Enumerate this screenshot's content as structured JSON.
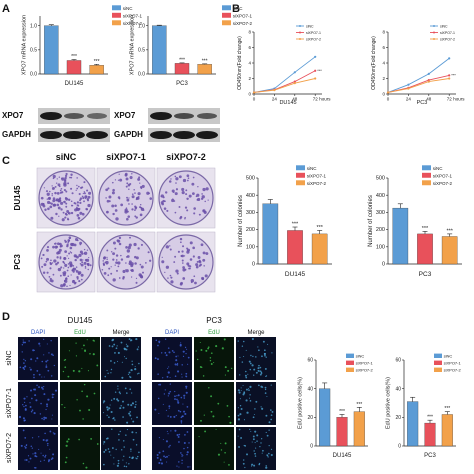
{
  "panels": {
    "A": {
      "letter": "A"
    },
    "B": {
      "letter": "B"
    },
    "C": {
      "letter": "C"
    },
    "D": {
      "letter": "D"
    }
  },
  "colors": {
    "siNC": "#5b9bd5",
    "siXPO7_1": "#e8515b",
    "siXPO7_2": "#f2a14a",
    "dapi_bg": "#0a0e2a",
    "edu_bg": "#07150a",
    "merge_bg": "#0a1025",
    "plate": "#6a4fa8"
  },
  "legend": [
    "siNC",
    "siXPO7-1",
    "siXPO7-2"
  ],
  "legend_d": [
    "siNC",
    "siXPO7-1",
    "siXPO7-2"
  ],
  "blot": {
    "band1": "XPO7",
    "band2": "GAPDH"
  },
  "colony_labels": {
    "col1": "siNC",
    "col2": "siXPO7-1",
    "col3": "siXPO7-2",
    "row1": "DU145",
    "row2": "PC3"
  },
  "edu_labels": {
    "group1": "DU145",
    "group2": "PC3",
    "cols": [
      "DAPI",
      "EdU",
      "Merge",
      "DAPI",
      "EdU",
      "Merge"
    ],
    "rows": [
      "siNC",
      "siXPO7-1",
      "siXPO7-2"
    ]
  },
  "chart_data": [
    {
      "type": "bar",
      "id": "A-DU145",
      "categories": [
        "siNC",
        "siXPO7-1",
        "siXPO7-2"
      ],
      "values": [
        1.0,
        0.28,
        0.18
      ],
      "errors": [
        0.02,
        0.02,
        0.02
      ],
      "sig": [
        "",
        "***",
        "***"
      ],
      "ylabel": "XPO7 mRNA expression",
      "xlabel": "DU145",
      "ylim": [
        0,
        1.2
      ],
      "yticks": [
        "0.0",
        "0.5",
        "1.0"
      ]
    },
    {
      "type": "bar",
      "id": "A-PC3",
      "categories": [
        "siNC",
        "siXPO7-1",
        "siXPO7-2"
      ],
      "values": [
        1.0,
        0.22,
        0.2
      ],
      "errors": [
        0.01,
        0.01,
        0.01
      ],
      "sig": [
        "",
        "***",
        "***"
      ],
      "ylabel": "XPO7 mRNA expression",
      "xlabel": "PC3",
      "ylim": [
        0,
        1.2
      ],
      "yticks": [
        "0.0",
        "0.5",
        "1.0"
      ]
    },
    {
      "type": "line",
      "id": "B-DU145",
      "x": [
        0,
        24,
        48,
        72
      ],
      "xticks": [
        "0",
        "24",
        "48",
        "72"
      ],
      "xunit": "hours",
      "series": [
        {
          "name": "siNC",
          "values": [
            0.2,
            0.7,
            2.8,
            4.8
          ]
        },
        {
          "name": "siXPO7-1",
          "values": [
            0.2,
            0.55,
            1.6,
            3.0
          ]
        },
        {
          "name": "siXPO7-2",
          "values": [
            0.2,
            0.5,
            1.4,
            2.0
          ]
        }
      ],
      "ylabel": "OD450nm(Fold change)",
      "xlabel": "DU145",
      "ylim": [
        0,
        8
      ],
      "yticks": [
        "0",
        "2",
        "4",
        "6",
        "8"
      ],
      "sig": "***"
    },
    {
      "type": "line",
      "id": "B-PC3",
      "x": [
        0,
        24,
        48,
        72
      ],
      "xticks": [
        "0",
        "24",
        "48",
        "72"
      ],
      "xunit": "hours",
      "series": [
        {
          "name": "siNC",
          "values": [
            0.2,
            1.2,
            2.6,
            4.6
          ]
        },
        {
          "name": "siXPO7-1",
          "values": [
            0.2,
            0.8,
            1.8,
            2.4
          ]
        },
        {
          "name": "siXPO7-2",
          "values": [
            0.2,
            0.7,
            1.6,
            2.0
          ]
        }
      ],
      "ylabel": "OD450nm(Fold change)",
      "xlabel": "PC3",
      "ylim": [
        0,
        8
      ],
      "yticks": [
        "0",
        "2",
        "4",
        "6",
        "8"
      ],
      "sig": "***"
    },
    {
      "type": "bar",
      "id": "C-DU145",
      "categories": [
        "siNC",
        "siXPO7-1",
        "siXPO7-2"
      ],
      "values": [
        350,
        195,
        175
      ],
      "errors": [
        25,
        20,
        20
      ],
      "sig": [
        "",
        "***",
        "***"
      ],
      "ylabel": "Number of colonies",
      "xlabel": "DU145",
      "ylim": [
        0,
        500
      ],
      "yticks": [
        "0",
        "100",
        "200",
        "300",
        "400",
        "500"
      ]
    },
    {
      "type": "bar",
      "id": "C-PC3",
      "categories": [
        "siNC",
        "siXPO7-1",
        "siXPO7-2"
      ],
      "values": [
        325,
        175,
        160
      ],
      "errors": [
        25,
        15,
        15
      ],
      "sig": [
        "",
        "***",
        "***"
      ],
      "ylabel": "Number of colonies",
      "xlabel": "PC3",
      "ylim": [
        0,
        500
      ],
      "yticks": [
        "0",
        "100",
        "200",
        "300",
        "400",
        "500"
      ]
    },
    {
      "type": "bar",
      "id": "D-DU145",
      "categories": [
        "siNC",
        "siXPO7-1",
        "siXPO7-2"
      ],
      "values": [
        40,
        20,
        24
      ],
      "errors": [
        4,
        2,
        3
      ],
      "sig": [
        "",
        "***",
        "***"
      ],
      "ylabel": "EdU positive cells(%)",
      "xlabel": "DU145",
      "ylim": [
        0,
        60
      ],
      "yticks": [
        "0",
        "20",
        "40",
        "60"
      ]
    },
    {
      "type": "bar",
      "id": "D-PC3",
      "categories": [
        "siNC",
        "siXPO7-1",
        "siXPO7-2"
      ],
      "values": [
        31,
        16,
        22
      ],
      "errors": [
        3,
        2,
        2
      ],
      "sig": [
        "",
        "***",
        "***"
      ],
      "ylabel": "EdU positive cells(%)",
      "xlabel": "PC3",
      "ylim": [
        0,
        60
      ],
      "yticks": [
        "0",
        "20",
        "40",
        "60"
      ]
    }
  ]
}
